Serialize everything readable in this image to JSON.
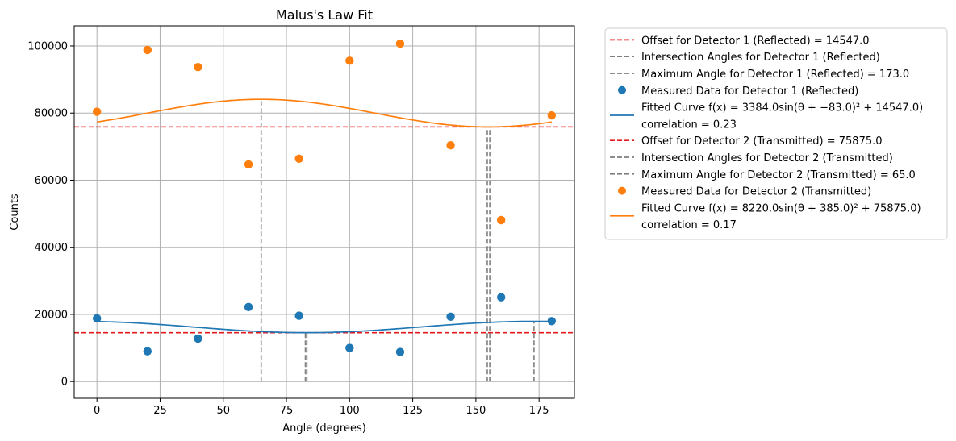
{
  "chart_data": {
    "type": "scatter",
    "title": "Malus's Law Fit",
    "xlabel": "Angle (degrees)",
    "ylabel": "Counts",
    "xlim": [
      -9,
      189
    ],
    "ylim": [
      -5000,
      106000
    ],
    "xticks": [
      0,
      25,
      50,
      75,
      100,
      125,
      150,
      175
    ],
    "xtick_labels": [
      "0",
      "25",
      "50",
      "75",
      "100",
      "125",
      "150",
      "175"
    ],
    "yticks": [
      0,
      20000,
      40000,
      60000,
      80000,
      100000
    ],
    "ytick_labels": [
      "0",
      "20000",
      "40000",
      "60000",
      "80000",
      "100000"
    ],
    "grid": true,
    "legend_position": "outside right",
    "colors": {
      "detector1": "#1f77b4",
      "detector2": "#ff7f0e",
      "offset": "#e31a1c",
      "guide": "#7f7f7f",
      "grid": "#b0b0b0"
    },
    "series": [
      {
        "name": "Measured Data for Detector 1 (Reflected)",
        "kind": "scatter",
        "color": "#1f77b4",
        "x": [
          0,
          20,
          40,
          60,
          80,
          100,
          120,
          140,
          160,
          180
        ],
        "y": [
          18800,
          9000,
          12800,
          22200,
          19600,
          10000,
          8800,
          19300,
          25100,
          18000
        ]
      },
      {
        "name": "Measured Data for Detector 2 (Transmitted)",
        "kind": "scatter",
        "color": "#ff7f0e",
        "x": [
          0,
          20,
          40,
          60,
          80,
          100,
          120,
          140,
          160,
          180
        ],
        "y": [
          80400,
          98800,
          93700,
          64700,
          66400,
          95600,
          100700,
          70400,
          48100,
          79300
        ]
      },
      {
        "name": "Fitted Curve f(x) = 3384.0sin(θ + −83.0)² + 14547.0)",
        "kind": "curve",
        "color": "#1f77b4",
        "amplitude": 3384.0,
        "phase": -83.0,
        "offset": 14547.0
      },
      {
        "name": "Fitted Curve f(x) = 8220.0sin(θ + 385.0)² + 75875.0)",
        "kind": "curve",
        "color": "#ff7f0e",
        "amplitude": 8220.0,
        "phase": 385.0,
        "offset": 75875.0
      }
    ],
    "hlines": [
      {
        "y": 14547.0,
        "color": "#e31a1c"
      },
      {
        "y": 75875.0,
        "color": "#e31a1c"
      }
    ],
    "vlines": [
      {
        "x": 82.5,
        "y0": 0,
        "y1": 14547
      },
      {
        "x": 83.1,
        "y0": 0,
        "y1": 14547
      },
      {
        "x": 173.0,
        "y0": 0,
        "y1": 17931
      },
      {
        "x": 154.5,
        "y0": 0,
        "y1": 75875
      },
      {
        "x": 155.5,
        "y0": 0,
        "y1": 75875
      },
      {
        "x": 65.0,
        "y0": 0,
        "y1": 84095
      }
    ],
    "legend": [
      {
        "style": "dashed",
        "color": "#e31a1c",
        "lines": [
          "Offset for Detector 1 (Reflected) = 14547.0"
        ]
      },
      {
        "style": "dashed",
        "color": "#7f7f7f",
        "lines": [
          "Intersection Angles for Detector 1 (Reflected)"
        ]
      },
      {
        "style": "dashed",
        "color": "#7f7f7f",
        "lines": [
          "Maximum Angle for Detector 1 (Reflected) = 173.0"
        ]
      },
      {
        "style": "marker",
        "color": "#1f77b4",
        "lines": [
          "Measured Data for Detector 1 (Reflected)"
        ]
      },
      {
        "style": "solid",
        "color": "#1f77b4",
        "lines": [
          "Fitted Curve f(x) = 3384.0sin(θ + −83.0)² + 14547.0)",
          " correlation = 0.23"
        ]
      },
      {
        "style": "dashed",
        "color": "#e31a1c",
        "lines": [
          "Offset for Detector 2 (Transmitted) = 75875.0"
        ]
      },
      {
        "style": "dashed",
        "color": "#7f7f7f",
        "lines": [
          "Intersection Angles for Detector 2 (Transmitted)"
        ]
      },
      {
        "style": "dashed",
        "color": "#7f7f7f",
        "lines": [
          "Maximum Angle for Detector 2 (Transmitted) = 65.0"
        ]
      },
      {
        "style": "marker",
        "color": "#ff7f0e",
        "lines": [
          "Measured Data for Detector 2 (Transmitted)"
        ]
      },
      {
        "style": "solid",
        "color": "#ff7f0e",
        "lines": [
          "Fitted Curve f(x) = 8220.0sin(θ + 385.0)² + 75875.0)",
          " correlation = 0.17"
        ]
      }
    ]
  }
}
